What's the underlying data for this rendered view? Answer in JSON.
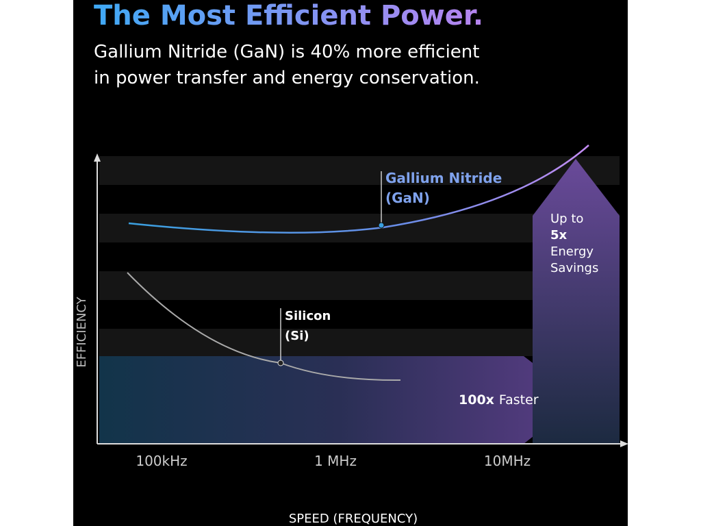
{
  "header": {
    "title": "The Most Efficient Power.",
    "subtitle": [
      "Gallium Nitride (GaN) is 40% more efficient",
      "in power transfer and energy conservation."
    ]
  },
  "axes": {
    "y_label": "EFFICIENCY",
    "x_label": "SPEED (FREQUENCY)",
    "x_ticks": [
      "100kHz",
      "1 MHz",
      "10MHz"
    ]
  },
  "curves": [
    {
      "label": [
        "Gallium Nitride",
        "(GaN)"
      ]
    },
    {
      "label": [
        "Silicon",
        "(Si)"
      ]
    }
  ],
  "callouts": {
    "speed": {
      "emphasis": "100x",
      "text": "Faster"
    },
    "savings": {
      "lead": "Up to",
      "emphasis": "5x",
      "rest": [
        "Energy",
        "Savings"
      ]
    }
  }
}
